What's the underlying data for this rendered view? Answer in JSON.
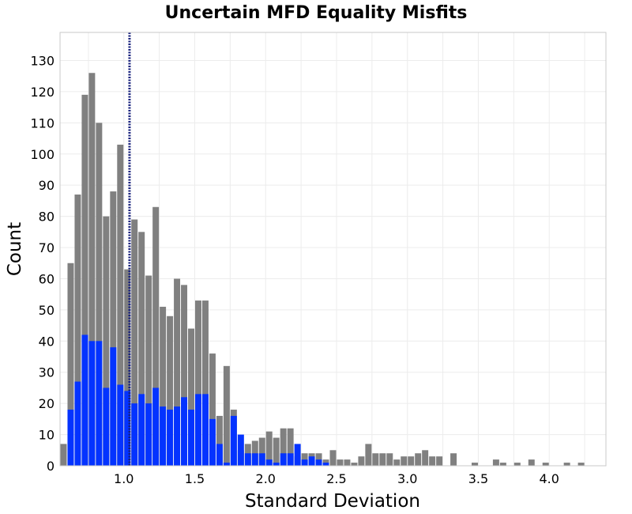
{
  "chart_data": {
    "type": "bar",
    "title": "Uncertain MFD Equality Misfits",
    "xlabel": "Standard Deviation",
    "ylabel": "Count",
    "xlim": [
      0.55,
      4.4
    ],
    "ylim": [
      0,
      139
    ],
    "bin_width": 0.05,
    "x_ticks": [
      1.0,
      1.5,
      2.0,
      2.5,
      3.0,
      3.5,
      4.0
    ],
    "x_tick_labels": [
      "1.0",
      "1.5",
      "2.0",
      "2.5",
      "3.0",
      "3.5",
      "4.0"
    ],
    "y_ticks": [
      0,
      10,
      20,
      30,
      40,
      50,
      60,
      70,
      80,
      90,
      100,
      110,
      120,
      130
    ],
    "y_tick_labels": [
      "0",
      "10",
      "20",
      "30",
      "40",
      "50",
      "60",
      "70",
      "80",
      "90",
      "100",
      "110",
      "120",
      "130"
    ],
    "grid": true,
    "reference_line": {
      "x": 1.04,
      "color": "#1a237e",
      "style": "dotted"
    },
    "bin_starts": [
      0.55,
      0.6,
      0.65,
      0.7,
      0.75,
      0.8,
      0.85,
      0.9,
      0.95,
      1.0,
      1.05,
      1.1,
      1.15,
      1.2,
      1.25,
      1.3,
      1.35,
      1.4,
      1.45,
      1.5,
      1.55,
      1.6,
      1.65,
      1.7,
      1.75,
      1.8,
      1.85,
      1.9,
      1.95,
      2.0,
      2.05,
      2.1,
      2.15,
      2.2,
      2.25,
      2.3,
      2.35,
      2.4,
      2.45,
      2.5,
      2.55,
      2.6,
      2.65,
      2.7,
      2.75,
      2.8,
      2.85,
      2.9,
      2.95,
      3.0,
      3.05,
      3.1,
      3.15,
      3.2,
      3.25,
      3.3,
      3.35,
      3.4,
      3.45,
      3.5,
      3.55,
      3.6,
      3.65,
      3.7,
      3.75,
      3.8,
      3.85,
      3.9,
      3.95,
      4.0,
      4.05,
      4.1,
      4.15,
      4.2,
      4.25,
      4.3,
      4.35
    ],
    "series": [
      {
        "color": "#808080",
        "values": [
          7,
          65,
          87,
          119,
          126,
          110,
          80,
          88,
          103,
          63,
          79,
          75,
          61,
          83,
          51,
          48,
          60,
          58,
          44,
          53,
          53,
          36,
          16,
          32,
          18,
          5,
          7,
          8,
          9,
          11,
          9,
          12,
          12,
          3,
          4,
          4,
          4,
          2,
          5,
          2,
          2,
          1,
          3,
          7,
          4,
          4,
          4,
          2,
          3,
          3,
          4,
          5,
          3,
          3,
          0,
          4,
          0,
          0,
          1,
          0,
          0,
          2,
          1,
          0,
          1,
          0,
          2,
          0,
          1,
          0,
          0,
          1,
          0,
          1,
          0,
          0,
          0
        ]
      },
      {
        "color": "#0433ff",
        "values": [
          0,
          18,
          27,
          42,
          40,
          40,
          25,
          38,
          26,
          24,
          20,
          23,
          20,
          25,
          19,
          18,
          19,
          22,
          18,
          23,
          23,
          15,
          7,
          1,
          16,
          10,
          4,
          4,
          4,
          2,
          1,
          4,
          4,
          7,
          2,
          3,
          2,
          1,
          0,
          0,
          0,
          0,
          0,
          0,
          0,
          0,
          0,
          0,
          0,
          0,
          0,
          0,
          0,
          0,
          0,
          0,
          0,
          0,
          0,
          0,
          0,
          0,
          0,
          0,
          0,
          0,
          0,
          0,
          0,
          0,
          0,
          0,
          0,
          0,
          0,
          0,
          0
        ]
      }
    ]
  }
}
